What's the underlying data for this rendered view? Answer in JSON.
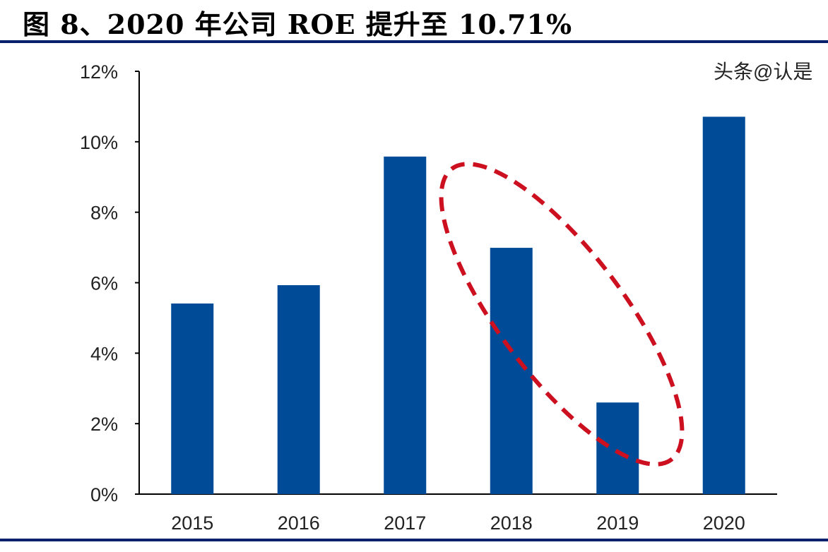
{
  "title": "图 8、2020 年公司 ROE 提升至 10.71%",
  "watermark": "头条@认是",
  "chart_data": {
    "type": "bar",
    "title": "图 8、2020 年公司 ROE 提升至 10.71%",
    "categories": [
      "2015",
      "2016",
      "2017",
      "2018",
      "2019",
      "2020"
    ],
    "values": [
      5.41,
      5.93,
      9.58,
      6.99,
      2.6,
      10.71
    ],
    "ylim": [
      0,
      12
    ],
    "yticks": [
      "0%",
      "2%",
      "4%",
      "6%",
      "8%",
      "10%",
      "12%"
    ],
    "xlabel": "",
    "ylabel": "",
    "bar_color": "#004b97",
    "annotation": {
      "type": "dashed-ellipse",
      "color": "#cc1020",
      "covers": [
        "2018",
        "2019"
      ]
    },
    "grid": false,
    "legend": "none"
  }
}
